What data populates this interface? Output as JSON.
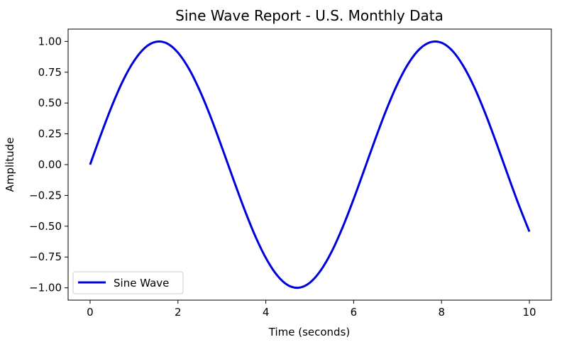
{
  "chart_data": {
    "type": "line",
    "title": "Sine Wave Report - U.S. Monthly Data",
    "xlabel": "Time (seconds)",
    "ylabel": "Amplitude",
    "xlim": [
      -0.5,
      10.5
    ],
    "ylim": [
      -1.1,
      1.1
    ],
    "xticks": [
      0,
      2,
      4,
      6,
      8,
      10
    ],
    "xtick_labels": [
      "0",
      "2",
      "4",
      "6",
      "8",
      "10"
    ],
    "yticks": [
      1,
      0.75,
      0.5,
      0.25,
      0,
      -0.25,
      -0.5,
      -0.75,
      -1
    ],
    "ytick_labels": [
      "1.00",
      "0.75",
      "0.50",
      "0.25",
      "0.00",
      "−0.25",
      "−0.50",
      "−0.75",
      "−1.00"
    ],
    "grid": false,
    "legend_position": "lower-left",
    "series": [
      {
        "name": "Sine Wave",
        "color": "#0000dd",
        "x": [
          0,
          0.25,
          0.5,
          0.75,
          1,
          1.25,
          1.5,
          1.75,
          2,
          2.25,
          2.5,
          2.75,
          3,
          3.25,
          3.5,
          3.75,
          4,
          4.25,
          4.5,
          4.75,
          5,
          5.25,
          5.5,
          5.75,
          6,
          6.25,
          6.5,
          6.75,
          7,
          7.25,
          7.5,
          7.75,
          8,
          8.25,
          8.5,
          8.75,
          9,
          9.25,
          9.5,
          9.75,
          10
        ],
        "y": [
          0,
          0.247,
          0.479,
          0.682,
          0.841,
          0.949,
          0.997,
          0.984,
          0.909,
          0.778,
          0.598,
          0.382,
          0.141,
          -0.108,
          -0.351,
          -0.572,
          -0.757,
          -0.895,
          -0.978,
          -0.999,
          -0.959,
          -0.859,
          -0.706,
          -0.508,
          -0.279,
          -0.033,
          0.215,
          0.45,
          0.657,
          0.823,
          0.938,
          0.994,
          0.989,
          0.923,
          0.798,
          0.625,
          0.412,
          0.174,
          -0.075,
          -0.319,
          -0.544
        ]
      }
    ]
  }
}
